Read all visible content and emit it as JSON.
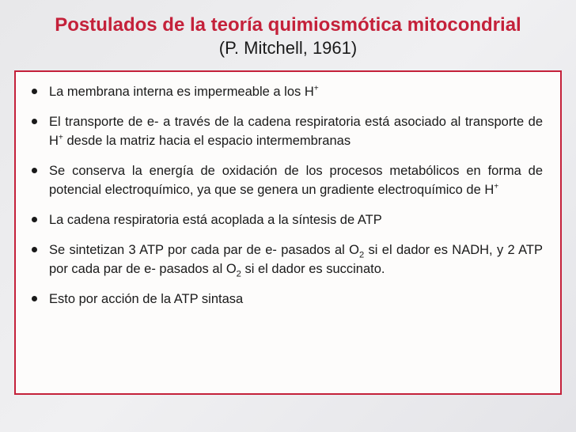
{
  "title": {
    "main": "Postulados de la teoría quimiosmótica mitocondrial",
    "sub": "(P. Mitchell, 1961)"
  },
  "colors": {
    "accent": "#c4213a",
    "text": "#1a1a1a",
    "box_bg": "#fdfcfb",
    "slide_bg_start": "#e8e8ea",
    "slide_bg_end": "#e4e4e8"
  },
  "typography": {
    "title_fontsize_pt": 18,
    "subtitle_fontsize_pt": 16,
    "body_fontsize_pt": 12,
    "font_family": "Arial"
  },
  "bullets": [
    {
      "html": "La membrana interna es impermeable a los H<sup>+</sup>"
    },
    {
      "html": "El transporte de e- a través de la cadena respiratoria está asociado al transporte de H<sup>+</sup> desde la matriz hacia el espacio intermembranas"
    },
    {
      "html": "Se conserva la energía de oxidación de los procesos metabólicos en forma de potencial electroquímico, ya que se genera un gradiente electroquímico de H<sup>+</sup>"
    },
    {
      "html": "La cadena respiratoria está acoplada a la síntesis de ATP"
    },
    {
      "html": "Se sintetizan 3 ATP por cada par de e- pasados al O<sub>2</sub> si el dador es NADH, y 2 ATP por cada par de e- pasados al O<sub>2</sub> si el dador es succinato."
    },
    {
      "html": "Esto por acción de la ATP sintasa"
    }
  ]
}
